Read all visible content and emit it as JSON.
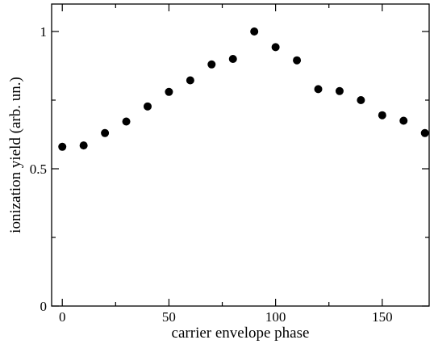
{
  "chart_data": {
    "type": "scatter",
    "title": "",
    "xlabel": "carrier envelope phase",
    "ylabel": "ionization yield (arb. un.)",
    "xlim": [
      -5,
      172
    ],
    "ylim": [
      0,
      1.1
    ],
    "x_ticks": [
      0,
      50,
      100,
      150
    ],
    "x_tick_labels": [
      "0",
      "50",
      "100",
      "150"
    ],
    "y_ticks": [
      0,
      0.5,
      1
    ],
    "y_tick_labels": [
      "0",
      "0.5",
      "1"
    ],
    "grid": false,
    "marker_color": "#000000",
    "series": [
      {
        "x": [
          0,
          10,
          20,
          30,
          40,
          50,
          60,
          70,
          80,
          90,
          100,
          110,
          120,
          130,
          140,
          150,
          160,
          170
        ],
        "y": [
          0.58,
          0.585,
          0.63,
          0.672,
          0.727,
          0.78,
          0.822,
          0.88,
          0.9,
          1.0,
          0.943,
          0.895,
          0.79,
          0.783,
          0.75,
          0.695,
          0.675,
          0.63
        ]
      }
    ]
  }
}
